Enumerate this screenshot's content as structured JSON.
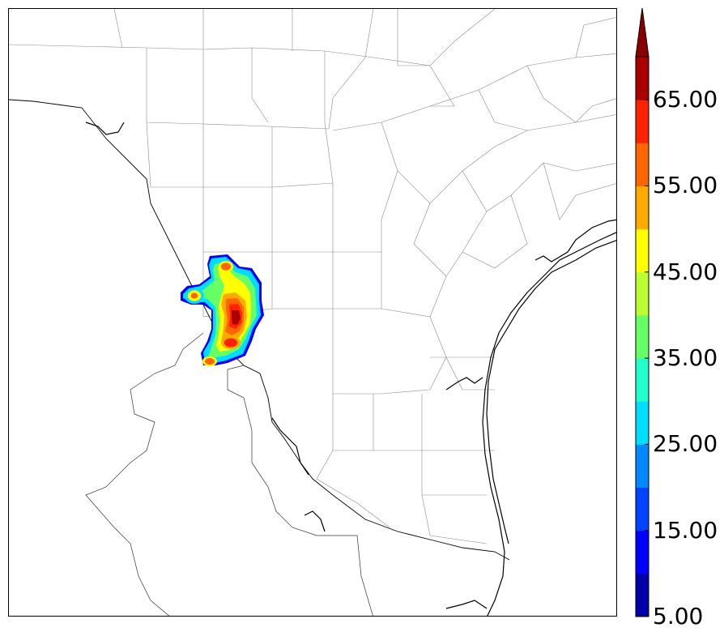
{
  "colorbar": {
    "tick_labels": [
      "5.00",
      "15.00",
      "25.00",
      "35.00",
      "45.00",
      "55.00",
      "65.00"
    ],
    "levels": [
      5,
      10,
      15,
      20,
      25,
      30,
      35,
      40,
      45,
      50,
      55,
      60,
      65,
      70
    ],
    "colors": [
      "#0000aa",
      "#0000ff",
      "#0044ff",
      "#0088ff",
      "#00ddff",
      "#22ffcc",
      "#66ff66",
      "#bbff33",
      "#ffff00",
      "#ffaa00",
      "#ff6600",
      "#ff2200",
      "#aa0000"
    ],
    "extend_color": "#880000"
  },
  "map": {
    "features": [
      "county-boundaries",
      "state-boundary",
      "mexico-state-boundary",
      "coastline"
    ],
    "field_max_label": "70"
  }
}
